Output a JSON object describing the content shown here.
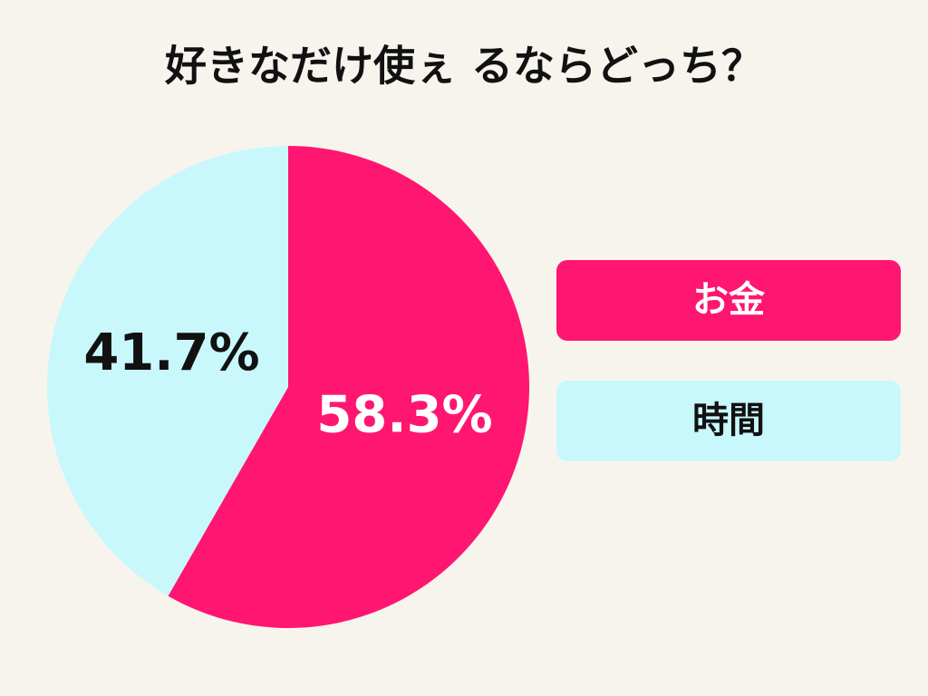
{
  "chart_data": {
    "type": "pie",
    "title": "好きなだけ使ぇ るならどっち？",
    "categories": [
      "お金",
      "時間"
    ],
    "values": [
      58.3,
      41.7
    ],
    "value_labels": [
      "58.3%",
      "41.7%"
    ],
    "colors": [
      "#ff1670",
      "#c8f8fb"
    ]
  }
}
